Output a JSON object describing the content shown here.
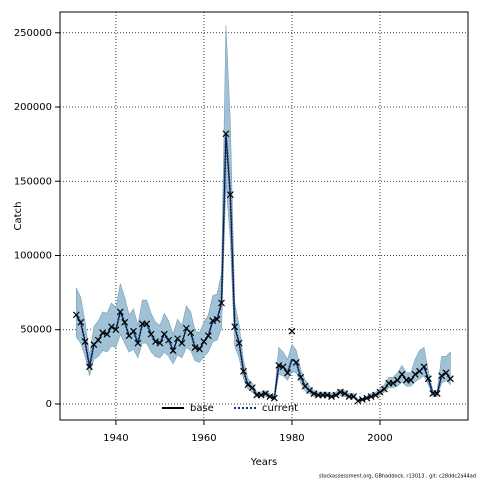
{
  "chart_data": {
    "type": "line",
    "xlabel": "Years",
    "ylabel": "Catch",
    "footer": "stockassessment.org, GBhaddock, r13013 , git: c28ddc2a44ad",
    "xlim": [
      1927.3,
      2020
    ],
    "ylim": [
      -10800,
      264000
    ],
    "xticks": [
      1940,
      1960,
      1980,
      2000
    ],
    "yticks": [
      0,
      50000,
      100000,
      150000,
      200000,
      250000
    ],
    "grid": true,
    "legend": "bottom",
    "x": [
      1931,
      1932,
      1933,
      1934,
      1935,
      1936,
      1937,
      1938,
      1939,
      1940,
      1941,
      1942,
      1943,
      1944,
      1945,
      1946,
      1947,
      1948,
      1949,
      1950,
      1951,
      1952,
      1953,
      1954,
      1955,
      1956,
      1957,
      1958,
      1959,
      1960,
      1961,
      1962,
      1963,
      1964,
      1965,
      1966,
      1967,
      1968,
      1969,
      1970,
      1971,
      1972,
      1973,
      1974,
      1975,
      1976,
      1977,
      1978,
      1979,
      1980,
      1981,
      1982,
      1983,
      1984,
      1985,
      1986,
      1987,
      1988,
      1989,
      1990,
      1991,
      1992,
      1993,
      1994,
      1995,
      1996,
      1997,
      1998,
      1999,
      2000,
      2001,
      2002,
      2003,
      2004,
      2005,
      2006,
      2007,
      2008,
      2009,
      2010,
      2011,
      2012,
      2013,
      2014,
      2015,
      2016
    ],
    "band": {
      "color": "#9fc2d6",
      "lower": [
        45000,
        41000,
        32000,
        19000,
        30000,
        32000,
        36000,
        35000,
        39000,
        38000,
        47000,
        41000,
        35000,
        37000,
        31000,
        41000,
        41000,
        35000,
        32000,
        31000,
        35000,
        32000,
        27000,
        33000,
        31000,
        38000,
        36000,
        29000,
        28000,
        32000,
        35000,
        42000,
        43000,
        51000,
        150000,
        110000,
        39000,
        31000,
        17000,
        10000,
        8000,
        5000,
        5000,
        5000,
        4000,
        3000,
        20000,
        19000,
        16000,
        22000,
        21000,
        14000,
        9000,
        7000,
        5000,
        5000,
        5000,
        5000,
        4000,
        5000,
        6000,
        5000,
        4000,
        4000,
        2000,
        2000,
        3000,
        4000,
        5000,
        6000,
        8000,
        11000,
        11000,
        12000,
        15000,
        12000,
        12000,
        15000,
        17000,
        19000,
        13000,
        5000,
        5000,
        14000,
        16000,
        13000
      ],
      "upper": [
        78000,
        72000,
        55000,
        33000,
        52000,
        56000,
        62000,
        61000,
        68000,
        65000,
        81000,
        72000,
        60000,
        64000,
        53000,
        70000,
        70000,
        61000,
        55000,
        53000,
        61000,
        56000,
        47000,
        57000,
        53000,
        66000,
        62000,
        49000,
        48000,
        55000,
        60000,
        73000,
        74000,
        88000,
        255000,
        190000,
        68000,
        53000,
        29000,
        17000,
        14000,
        8000,
        8000,
        9000,
        7000,
        5000,
        38000,
        35000,
        30000,
        40000,
        36000,
        23000,
        16000,
        12000,
        9000,
        8000,
        8000,
        8000,
        7000,
        8000,
        10000,
        9000,
        7000,
        7000,
        3000,
        4000,
        5000,
        7000,
        8000,
        10000,
        13000,
        18000,
        18000,
        21000,
        26000,
        21000,
        21000,
        30000,
        36000,
        38000,
        22000,
        9000,
        9000,
        32000,
        32000,
        35000
      ]
    },
    "series": [
      {
        "name": "base",
        "color": "#000000",
        "values": [
          60000,
          55000,
          42000,
          25000,
          40000,
          43000,
          48000,
          47000,
          52000,
          50000,
          62000,
          55000,
          46000,
          49000,
          41000,
          54000,
          54000,
          47000,
          42000,
          41000,
          47000,
          43000,
          36000,
          44000,
          41000,
          51000,
          48000,
          38000,
          37000,
          42000,
          46000,
          56000,
          57000,
          68000,
          182000,
          141000,
          52000,
          41000,
          22000,
          13000,
          11000,
          6000,
          6000,
          7000,
          5000,
          4000,
          26000,
          25000,
          21000,
          30000,
          28000,
          18000,
          12000,
          9000,
          7000,
          6000,
          6000,
          6000,
          5000,
          6000,
          8000,
          7000,
          5000,
          5000,
          2000,
          3000,
          4000,
          5000,
          6000,
          8000,
          10000,
          14000,
          14000,
          16000,
          20000,
          16000,
          16000,
          20000,
          22000,
          25000,
          17000,
          7000,
          7000,
          19000,
          21000,
          17000
        ]
      },
      {
        "name": "current",
        "color": "#0b2f7a",
        "values": [
          60000,
          55000,
          42000,
          25000,
          40000,
          43000,
          48000,
          47000,
          52000,
          50000,
          62000,
          55000,
          46000,
          49000,
          41000,
          54000,
          54000,
          47000,
          42000,
          41000,
          47000,
          43000,
          36000,
          44000,
          41000,
          51000,
          48000,
          38000,
          37000,
          42000,
          46000,
          56000,
          57000,
          68000,
          182000,
          141000,
          52000,
          41000,
          22000,
          13000,
          11000,
          6000,
          6000,
          7000,
          5000,
          4000,
          26000,
          25000,
          21000,
          30000,
          28000,
          18000,
          12000,
          9000,
          7000,
          6000,
          6000,
          6000,
          5000,
          6000,
          8000,
          7000,
          5000,
          5000,
          2000,
          3000,
          4000,
          5000,
          6000,
          8000,
          10000,
          14000,
          14000,
          16000,
          20000,
          16000,
          16000,
          20000,
          22000,
          25000,
          17000,
          7000,
          7000,
          19000,
          21000,
          17000
        ]
      }
    ],
    "observed": [
      60000,
      55000,
      42000,
      25000,
      40000,
      43000,
      48000,
      47000,
      52000,
      50000,
      62000,
      55000,
      46000,
      49000,
      41000,
      54000,
      54000,
      47000,
      42000,
      41000,
      47000,
      43000,
      36000,
      44000,
      41000,
      51000,
      48000,
      38000,
      37000,
      42000,
      46000,
      56000,
      57000,
      68000,
      182000,
      141000,
      52000,
      41000,
      22000,
      13000,
      11000,
      6000,
      6000,
      7000,
      5000,
      4000,
      26000,
      25000,
      21000,
      49000,
      28000,
      18000,
      12000,
      9000,
      7000,
      6000,
      6000,
      6000,
      5000,
      6000,
      8000,
      7000,
      5000,
      5000,
      2000,
      3000,
      4000,
      5000,
      6000,
      8000,
      10000,
      14000,
      14000,
      16000,
      20000,
      16000,
      16000,
      20000,
      22000,
      25000,
      17000,
      7000,
      7000,
      19000,
      21000,
      17000
    ]
  }
}
